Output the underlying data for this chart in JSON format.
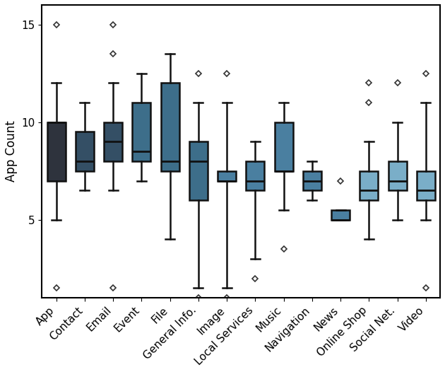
{
  "categories": [
    "App",
    "Contact",
    "Email",
    "Event",
    "File",
    "General Info.",
    "Image",
    "Local Services",
    "Music",
    "Navigation",
    "News",
    "Online Shop",
    "Social Net.",
    "Video"
  ],
  "ylabel": "App Count",
  "boxplot_data": {
    "App": {
      "whislo": 5.0,
      "q1": 7.0,
      "med": 10.0,
      "q3": 10.0,
      "whishi": 12.0,
      "fliers": [
        1.5,
        15.0
      ]
    },
    "Contact": {
      "whislo": 6.5,
      "q1": 7.5,
      "med": 8.0,
      "q3": 9.5,
      "whishi": 11.0,
      "fliers": []
    },
    "Email": {
      "whislo": 6.5,
      "q1": 8.0,
      "med": 9.0,
      "q3": 10.0,
      "whishi": 12.0,
      "fliers": [
        1.5,
        13.5,
        15.0
      ]
    },
    "Event": {
      "whislo": 7.0,
      "q1": 8.0,
      "med": 8.5,
      "q3": 11.0,
      "whishi": 12.5,
      "fliers": []
    },
    "File": {
      "whislo": 4.0,
      "q1": 7.5,
      "med": 8.0,
      "q3": 12.0,
      "whishi": 13.5,
      "fliers": []
    },
    "General Info.": {
      "whislo": 1.5,
      "q1": 6.0,
      "med": 8.0,
      "q3": 9.0,
      "whishi": 11.0,
      "fliers": [
        1.0,
        12.5
      ]
    },
    "Image": {
      "whislo": 1.5,
      "q1": 7.0,
      "med": 7.0,
      "q3": 7.5,
      "whishi": 11.0,
      "fliers": [
        1.0,
        12.5
      ]
    },
    "Local Services": {
      "whislo": 3.0,
      "q1": 6.5,
      "med": 7.0,
      "q3": 8.0,
      "whishi": 9.0,
      "fliers": [
        2.0
      ]
    },
    "Music": {
      "whislo": 5.5,
      "q1": 7.5,
      "med": 7.5,
      "q3": 10.0,
      "whishi": 11.0,
      "fliers": [
        3.5
      ]
    },
    "Navigation": {
      "whislo": 6.0,
      "q1": 6.5,
      "med": 7.0,
      "q3": 7.5,
      "whishi": 8.0,
      "fliers": []
    },
    "News": {
      "whislo": 5.0,
      "q1": 5.0,
      "med": 5.0,
      "q3": 5.5,
      "whishi": 5.5,
      "fliers": [
        7.0
      ]
    },
    "Online Shop": {
      "whislo": 4.0,
      "q1": 6.0,
      "med": 6.5,
      "q3": 7.5,
      "whishi": 9.0,
      "fliers": [
        11.0,
        12.0
      ]
    },
    "Social Net.": {
      "whislo": 5.0,
      "q1": 6.5,
      "med": 7.0,
      "q3": 8.0,
      "whishi": 10.0,
      "fliers": [
        12.0
      ]
    },
    "Video": {
      "whislo": 5.0,
      "q1": 6.0,
      "med": 6.5,
      "q3": 7.5,
      "whishi": 11.0,
      "fliers": [
        1.5,
        12.5
      ]
    }
  },
  "colors": {
    "App": "#2e333d",
    "Contact": "#344f65",
    "Email": "#344f65",
    "Event": "#3d6e8a",
    "File": "#3d6e8a",
    "General Info.": "#3d6e8a",
    "Image": "#4a7fa0",
    "Local Services": "#4a7fa0",
    "Music": "#4a7fa0",
    "Navigation": "#4a7fa0",
    "News": "#4a7fa0",
    "Online Shop": "#7aaec8",
    "Social Net.": "#7aaec8",
    "Video": "#7aaec8"
  },
  "figsize": [
    6.3,
    5.26
  ],
  "dpi": 100
}
